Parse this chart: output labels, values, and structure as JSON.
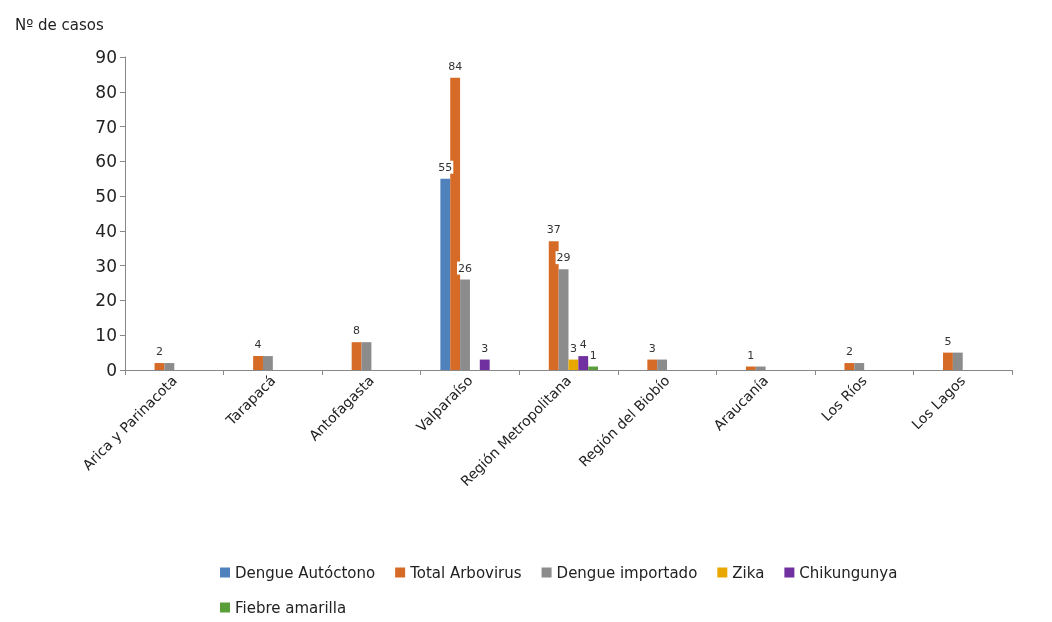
{
  "chart_data": {
    "type": "bar",
    "ylabel": "Nº de casos",
    "categories": [
      "Arica y Parinacota",
      "Tarapacá",
      "Antofagasta",
      "Valparaíso",
      "Región Metropolitana",
      "Región del Biobío",
      "Araucanía",
      "Los Ríos",
      "Los Lagos"
    ],
    "series": [
      {
        "name": "Dengue Autóctono",
        "color": "#4f81bd",
        "values": [
          null,
          null,
          null,
          55,
          null,
          null,
          null,
          null,
          null
        ],
        "value_labels": [
          null,
          null,
          null,
          "55",
          null,
          null,
          null,
          null,
          null
        ]
      },
      {
        "name": "Total Arbovirus",
        "color": "#d66b27",
        "values": [
          2,
          4,
          8,
          84,
          37,
          3,
          1,
          2,
          5
        ],
        "value_labels": [
          "2",
          "4",
          "8",
          "84",
          "37",
          "3",
          "1",
          "2",
          "5"
        ]
      },
      {
        "name": "Dengue importado",
        "color": "#8c8c8c",
        "values": [
          2,
          4,
          8,
          26,
          29,
          3,
          1,
          2,
          5
        ],
        "value_labels": [
          null,
          null,
          null,
          "26",
          "29",
          null,
          null,
          null,
          null
        ]
      },
      {
        "name": "Zika",
        "color": "#e8a800",
        "values": [
          null,
          null,
          null,
          null,
          3,
          null,
          null,
          null,
          null
        ],
        "value_labels": [
          null,
          null,
          null,
          null,
          "3",
          null,
          null,
          null,
          null
        ]
      },
      {
        "name": "Chikungunya",
        "color": "#7030a0",
        "values": [
          null,
          null,
          null,
          3,
          4,
          null,
          null,
          null,
          null
        ],
        "value_labels": [
          null,
          null,
          null,
          "3",
          "4",
          null,
          null,
          null,
          null
        ]
      },
      {
        "name": "Fiebre amarilla",
        "color": "#5a9e3a",
        "values": [
          null,
          null,
          null,
          null,
          1,
          null,
          null,
          null,
          null
        ],
        "value_labels": [
          null,
          null,
          null,
          null,
          "1",
          null,
          null,
          null,
          null
        ]
      }
    ],
    "ylim": [
      0,
      90
    ],
    "yticks": [
      0,
      10,
      20,
      30,
      40,
      50,
      60,
      70,
      80,
      90
    ],
    "grid": false,
    "legend": "bottom"
  }
}
